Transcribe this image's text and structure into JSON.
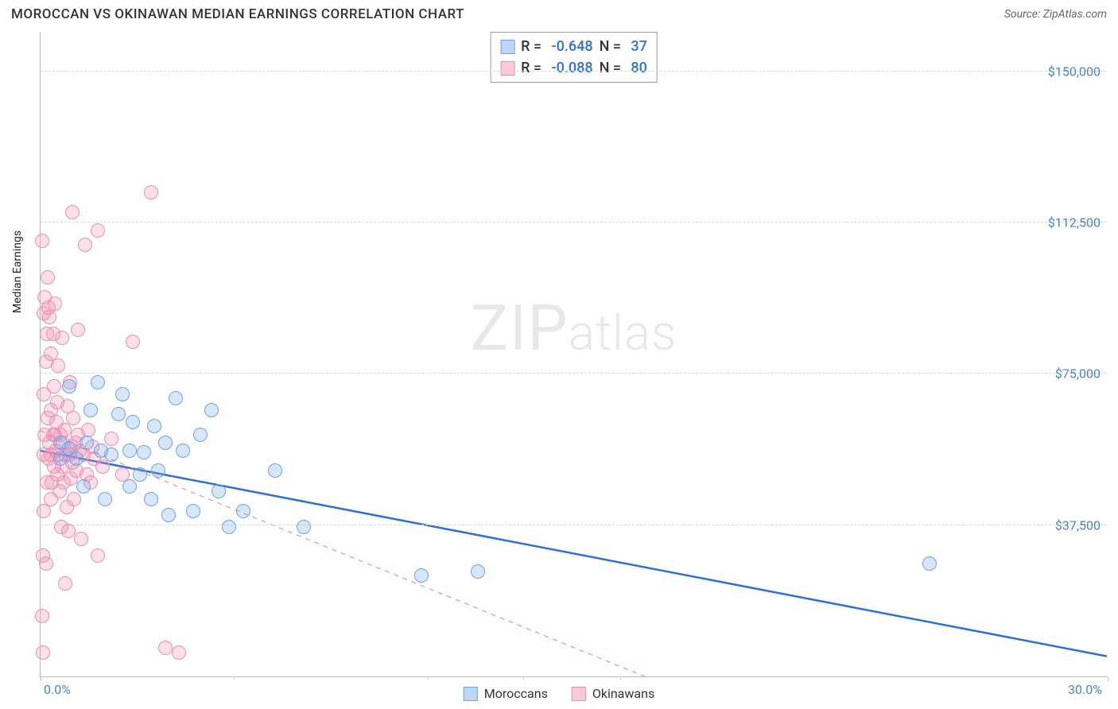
{
  "title": "MOROCCAN VS OKINAWAN MEDIAN EARNINGS CORRELATION CHART",
  "source": "Source: ZipAtlas.com",
  "ylabel": "Median Earnings",
  "watermark_a": "ZIP",
  "watermark_b": "atlas",
  "chart": {
    "type": "scatter",
    "background_color": "#ffffff",
    "grid_color": "#d8d8d8",
    "axis_color": "#bbbbbb",
    "xlim": [
      0.0,
      30.0
    ],
    "ylim": [
      0,
      160000
    ],
    "x_ticks_major": [
      0.0,
      30.0
    ],
    "x_tick_labels": [
      "0.0%",
      "30.0%"
    ],
    "x_ticks_minor": [
      5.44,
      10.88,
      13.58,
      16.3
    ],
    "y_ticks": [
      37500,
      75000,
      112500,
      150000
    ],
    "y_tick_labels": [
      "$37,500",
      "$75,000",
      "$112,500",
      "$150,000"
    ],
    "marker_radius": 9,
    "marker_border_width": 1.3,
    "series": [
      {
        "name": "Moroccans",
        "fill": "rgba(110,165,235,0.28)",
        "stroke": "#6fa3e6",
        "trend": {
          "stroke": "#2d6fd6",
          "width": 2.5,
          "dash": "none",
          "x1": 0.0,
          "y1": 56000,
          "x2": 30.0,
          "y2": 5000
        },
        "points": [
          [
            0.55,
            58000
          ],
          [
            0.55,
            54000
          ],
          [
            0.8,
            56500
          ],
          [
            0.8,
            72000
          ],
          [
            1.0,
            54000
          ],
          [
            1.2,
            47000
          ],
          [
            1.3,
            58000
          ],
          [
            1.4,
            66000
          ],
          [
            1.6,
            73000
          ],
          [
            1.7,
            56000
          ],
          [
            1.8,
            44000
          ],
          [
            2.0,
            55000
          ],
          [
            2.2,
            65000
          ],
          [
            2.3,
            70000
          ],
          [
            2.5,
            56000
          ],
          [
            2.5,
            47000
          ],
          [
            2.6,
            63000
          ],
          [
            2.8,
            50000
          ],
          [
            2.9,
            55500
          ],
          [
            3.1,
            44000
          ],
          [
            3.2,
            62000
          ],
          [
            3.3,
            51000
          ],
          [
            3.5,
            58000
          ],
          [
            3.6,
            40000
          ],
          [
            3.8,
            69000
          ],
          [
            4.0,
            56000
          ],
          [
            4.3,
            41000
          ],
          [
            4.5,
            60000
          ],
          [
            4.8,
            66000
          ],
          [
            5.0,
            46000
          ],
          [
            5.3,
            37000
          ],
          [
            5.7,
            41000
          ],
          [
            6.6,
            51000
          ],
          [
            7.4,
            37000
          ],
          [
            10.7,
            25000
          ],
          [
            12.3,
            26000
          ],
          [
            25.0,
            28000
          ]
        ]
      },
      {
        "name": "Okinawans",
        "fill": "rgba(240,140,175,0.28)",
        "stroke": "#ee8fb0",
        "trend": {
          "stroke": "#e98fb0",
          "width": 1.2,
          "dash": "6 6",
          "x1": 0.0,
          "y1": 61000,
          "x2": 17.0,
          "y2": 0
        },
        "points": [
          [
            0.05,
            15000
          ],
          [
            0.05,
            108000
          ],
          [
            0.06,
            6000
          ],
          [
            0.07,
            30000
          ],
          [
            0.08,
            41000
          ],
          [
            0.08,
            90000
          ],
          [
            0.1,
            55000
          ],
          [
            0.1,
            70000
          ],
          [
            0.12,
            94000
          ],
          [
            0.12,
            60000
          ],
          [
            0.15,
            28000
          ],
          [
            0.15,
            78000
          ],
          [
            0.18,
            48000
          ],
          [
            0.18,
            85000
          ],
          [
            0.2,
            64000
          ],
          [
            0.2,
            99000
          ],
          [
            0.22,
            54000
          ],
          [
            0.22,
            91500
          ],
          [
            0.25,
            58000
          ],
          [
            0.25,
            89000
          ],
          [
            0.28,
            44000
          ],
          [
            0.28,
            66000
          ],
          [
            0.3,
            55000
          ],
          [
            0.3,
            80000
          ],
          [
            0.32,
            48000
          ],
          [
            0.35,
            85000
          ],
          [
            0.35,
            60000
          ],
          [
            0.38,
            52000
          ],
          [
            0.38,
            72000
          ],
          [
            0.4,
            60000
          ],
          [
            0.4,
            92500
          ],
          [
            0.42,
            56000
          ],
          [
            0.45,
            63000
          ],
          [
            0.48,
            50000
          ],
          [
            0.48,
            68000
          ],
          [
            0.5,
            55000
          ],
          [
            0.5,
            77000
          ],
          [
            0.53,
            46000
          ],
          [
            0.55,
            60000
          ],
          [
            0.58,
            37000
          ],
          [
            0.6,
            52000
          ],
          [
            0.6,
            84000
          ],
          [
            0.63,
            58000
          ],
          [
            0.65,
            48000
          ],
          [
            0.68,
            61000
          ],
          [
            0.7,
            55000
          ],
          [
            0.7,
            23000
          ],
          [
            0.73,
            42000
          ],
          [
            0.75,
            67000
          ],
          [
            0.78,
            36000
          ],
          [
            0.8,
            55000
          ],
          [
            0.82,
            73000
          ],
          [
            0.85,
            49000
          ],
          [
            0.88,
            57000
          ],
          [
            0.9,
            53000
          ],
          [
            0.92,
            64000
          ],
          [
            0.95,
            44000
          ],
          [
            0.98,
            58000
          ],
          [
            1.0,
            51000
          ],
          [
            1.05,
            60000
          ],
          [
            1.05,
            86000
          ],
          [
            1.1,
            56000
          ],
          [
            1.15,
            34000
          ],
          [
            1.2,
            55000
          ],
          [
            1.25,
            107000
          ],
          [
            1.3,
            50000
          ],
          [
            1.35,
            61000
          ],
          [
            1.4,
            48000
          ],
          [
            1.45,
            57000
          ],
          [
            1.5,
            54000
          ],
          [
            1.6,
            110500
          ],
          [
            1.6,
            30000
          ],
          [
            1.75,
            52000
          ],
          [
            2.0,
            59000
          ],
          [
            2.3,
            50000
          ],
          [
            2.6,
            83000
          ],
          [
            3.1,
            120000
          ],
          [
            3.5,
            7000
          ],
          [
            3.9,
            6000
          ],
          [
            0.9,
            115000
          ]
        ]
      }
    ]
  },
  "stats": {
    "rows": [
      {
        "swatch_fill": "rgba(110,165,235,0.45)",
        "swatch_border": "#6fa3e6",
        "r": "-0.648",
        "n": "37"
      },
      {
        "swatch_fill": "rgba(240,140,175,0.45)",
        "swatch_border": "#ee8fb0",
        "r": "-0.088",
        "n": "80"
      }
    ],
    "r_label": "R = ",
    "n_label": "N = "
  },
  "legend": [
    {
      "swatch_fill": "rgba(110,165,235,0.45)",
      "swatch_border": "#6fa3e6",
      "label": "Moroccans"
    },
    {
      "swatch_fill": "rgba(240,140,175,0.45)",
      "swatch_border": "#ee8fb0",
      "label": "Okinawans"
    }
  ]
}
